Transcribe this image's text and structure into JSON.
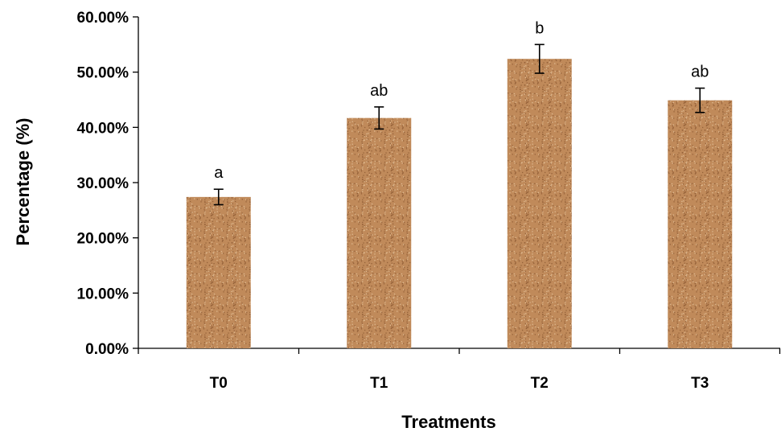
{
  "chart_data": {
    "type": "bar",
    "categories": [
      "T0",
      "T1",
      "T2",
      "T3"
    ],
    "values": [
      0.274,
      0.417,
      0.524,
      0.449
    ],
    "errors": [
      0.014,
      0.02,
      0.026,
      0.022
    ],
    "significance_labels": [
      "a",
      "ab",
      "b",
      "ab"
    ],
    "xlabel": "Treatments",
    "ylabel": "Percentage  (%)",
    "ylim": [
      0,
      0.6
    ],
    "yticks": [
      0,
      0.1,
      0.2,
      0.3,
      0.4,
      0.5,
      0.6
    ],
    "ytick_labels": [
      "0.00%",
      "10.00%",
      "20.00%",
      "30.00%",
      "40.00%",
      "50.00%",
      "60.00%"
    ],
    "grid": false,
    "legend": "none",
    "bar_color": "#c08a5a",
    "bar_speckle_dark": "#8e5a34",
    "bar_speckle_light": "#e4c29a"
  }
}
